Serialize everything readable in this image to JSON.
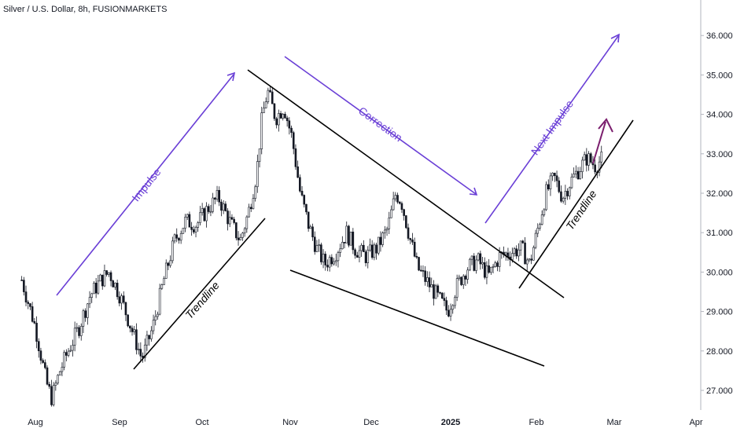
{
  "header": {
    "title": "Silver / U.S. Dollar, 8h, FUSIONMARKETS"
  },
  "colors": {
    "candle": "#131722",
    "trendline": "#000000",
    "impulse": "#6a3fd6",
    "next_arrow": "#7b1f6e",
    "axis_line": "#b2b5be",
    "background": "#ffffff"
  },
  "chart_data": {
    "type": "candlestick",
    "y_axis": {
      "ticks": [
        "27.000",
        "28.000",
        "29.000",
        "30.000",
        "31.000",
        "32.000",
        "33.000",
        "34.000",
        "35.000",
        "36.000"
      ],
      "range": [
        26.5,
        36.9
      ]
    },
    "x_axis": {
      "labels": [
        "Aug",
        "Sep",
        "Oct",
        "Nov",
        "Dec",
        "2025",
        "Feb",
        "Mar",
        "Apr"
      ]
    },
    "price_path": [
      {
        "x": "Jul 27",
        "y": 29.8
      },
      {
        "x": "Aug 1",
        "y": 28.6
      },
      {
        "x": "Aug 5",
        "y": 27.2
      },
      {
        "x": "Aug 7",
        "y": 26.8
      },
      {
        "x": "Aug 10",
        "y": 27.5
      },
      {
        "x": "Aug 13",
        "y": 28.0
      },
      {
        "x": "Aug 17",
        "y": 28.6
      },
      {
        "x": "Aug 21",
        "y": 29.4
      },
      {
        "x": "Aug 25",
        "y": 29.8
      },
      {
        "x": "Aug 28",
        "y": 30.0
      },
      {
        "x": "Sep 1",
        "y": 29.4
      },
      {
        "x": "Sep 5",
        "y": 28.6
      },
      {
        "x": "Sep 9",
        "y": 27.8
      },
      {
        "x": "Sep 13",
        "y": 28.6
      },
      {
        "x": "Sep 17",
        "y": 29.8
      },
      {
        "x": "Sep 21",
        "y": 30.8
      },
      {
        "x": "Sep 25",
        "y": 31.3
      },
      {
        "x": "Sep 29",
        "y": 31.2
      },
      {
        "x": "Oct 3",
        "y": 31.6
      },
      {
        "x": "Oct 7",
        "y": 31.9
      },
      {
        "x": "Oct 11",
        "y": 31.3
      },
      {
        "x": "Oct 15",
        "y": 30.8
      },
      {
        "x": "Oct 18",
        "y": 31.5
      },
      {
        "x": "Oct 21",
        "y": 32.5
      },
      {
        "x": "Oct 23",
        "y": 33.9
      },
      {
        "x": "Oct 25",
        "y": 34.6
      },
      {
        "x": "Oct 28",
        "y": 33.9
      },
      {
        "x": "Oct 31",
        "y": 34.2
      },
      {
        "x": "Nov 3",
        "y": 33.4
      },
      {
        "x": "Nov 6",
        "y": 32.0
      },
      {
        "x": "Nov 9",
        "y": 31.2
      },
      {
        "x": "Nov 12",
        "y": 30.6
      },
      {
        "x": "Nov 15",
        "y": 30.2
      },
      {
        "x": "Nov 19",
        "y": 30.5
      },
      {
        "x": "Nov 23",
        "y": 31.0
      },
      {
        "x": "Nov 26",
        "y": 30.6
      },
      {
        "x": "Nov 30",
        "y": 30.4
      },
      {
        "x": "Dec 4",
        "y": 30.6
      },
      {
        "x": "Dec 8",
        "y": 31.1
      },
      {
        "x": "Dec 11",
        "y": 32.0
      },
      {
        "x": "Dec 13",
        "y": 31.8
      },
      {
        "x": "Dec 16",
        "y": 30.9
      },
      {
        "x": "Dec 19",
        "y": 30.1
      },
      {
        "x": "Dec 22",
        "y": 29.8
      },
      {
        "x": "Dec 26",
        "y": 29.4
      },
      {
        "x": "Dec 30",
        "y": 29.0
      },
      {
        "x": "Jan 2",
        "y": 29.6
      },
      {
        "x": "Jan 6",
        "y": 30.1
      },
      {
        "x": "Jan 10",
        "y": 30.3
      },
      {
        "x": "Jan 14",
        "y": 29.9
      },
      {
        "x": "Jan 18",
        "y": 30.4
      },
      {
        "x": "Jan 22",
        "y": 30.5
      },
      {
        "x": "Jan 26",
        "y": 30.6
      },
      {
        "x": "Jan 29",
        "y": 30.2
      },
      {
        "x": "Feb 1",
        "y": 31.1
      },
      {
        "x": "Feb 4",
        "y": 32.0
      },
      {
        "x": "Feb 7",
        "y": 32.4
      },
      {
        "x": "Feb 10",
        "y": 31.9
      },
      {
        "x": "Feb 13",
        "y": 32.3
      },
      {
        "x": "Feb 16",
        "y": 32.6
      },
      {
        "x": "Feb 19",
        "y": 32.9
      },
      {
        "x": "Feb 22",
        "y": 32.7
      },
      {
        "x": "Feb 25",
        "y": 32.9
      }
    ],
    "annotations": [
      {
        "text": "Impulse"
      },
      {
        "text": "Correction"
      },
      {
        "text": "Next Impulse"
      },
      {
        "text": "Trendline"
      },
      {
        "text": "Trendline"
      }
    ]
  }
}
